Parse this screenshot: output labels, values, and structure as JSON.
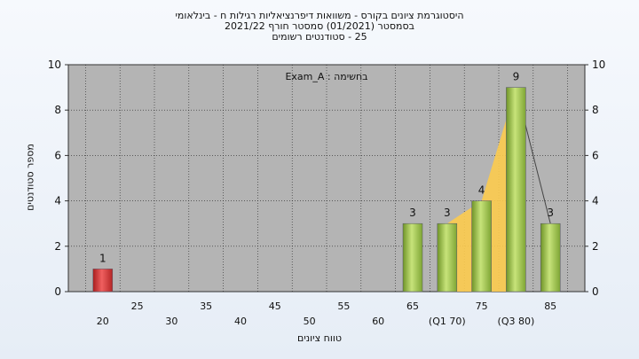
{
  "title_lines": [
    "היסטוגרמת ציונים בקורס - משוואות דיפרנציאליות רגילות ח - בינלאומי",
    "בסמסטר  (01/2021)  סמסטר חורף  2021/22",
    "25 - סטודנטים רשומים"
  ],
  "chart_data": {
    "type": "bar",
    "x": [
      20,
      65,
      70,
      75,
      80,
      85
    ],
    "values": [
      1,
      3,
      3,
      4,
      9,
      3
    ],
    "bar_colors": [
      "#d93a3a",
      "#9ac24a",
      "#9ac24a",
      "#9ac24a",
      "#9ac24a",
      "#9ac24a"
    ],
    "xlabel": "טווח ציונים",
    "ylabel": "מספר סטודנטים",
    "ylim": [
      0,
      10
    ],
    "yticks": [
      0,
      2,
      4,
      6,
      8,
      10
    ],
    "xlim": [
      15,
      90
    ],
    "xtick_rows": {
      "lower": [
        {
          "x": 20,
          "label": "20"
        },
        {
          "x": 30,
          "label": "30"
        },
        {
          "x": 40,
          "label": "40"
        },
        {
          "x": 50,
          "label": "50"
        },
        {
          "x": 60,
          "label": "60"
        },
        {
          "x": 70,
          "label": "(Q1 70)"
        },
        {
          "x": 80,
          "label": "(Q3 80)"
        }
      ],
      "upper": [
        {
          "x": 25,
          "label": "25"
        },
        {
          "x": 35,
          "label": "35"
        },
        {
          "x": 45,
          "label": "45"
        },
        {
          "x": 55,
          "label": "55"
        },
        {
          "x": 65,
          "label": "65"
        },
        {
          "x": 75,
          "label": "75"
        },
        {
          "x": 85,
          "label": "85"
        }
      ]
    },
    "annotation": "Exam_A : בחשימה",
    "overlay": {
      "fill_color": "#fccb4e",
      "quartile_points": [
        [
          70,
          3
        ],
        [
          80,
          9
        ]
      ],
      "median_x": 75,
      "line_points": [
        [
          80,
          9
        ],
        [
          85,
          3
        ]
      ]
    },
    "grid": true,
    "plot_bg": "#b4b4b4"
  }
}
